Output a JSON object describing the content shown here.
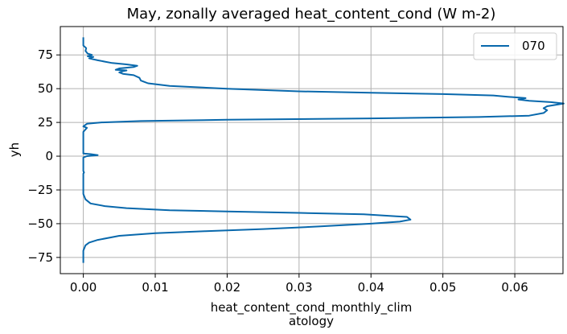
{
  "chart_data": {
    "type": "line",
    "title": "May, zonally averaged heat_content_cond (W m-2)",
    "xlabel_lines": [
      "heat_content_cond_monthly_clim",
      "atology"
    ],
    "ylabel": "yh",
    "xlim": [
      -0.0032,
      0.0667
    ],
    "ylim": [
      -87,
      96
    ],
    "xticks": [
      0.0,
      0.01,
      0.02,
      0.03,
      0.04,
      0.05,
      0.06
    ],
    "xtick_labels": [
      "0.00",
      "0.01",
      "0.02",
      "0.03",
      "0.04",
      "0.05",
      "0.06"
    ],
    "yticks": [
      -75,
      -50,
      -25,
      0,
      25,
      50,
      75
    ],
    "ytick_labels": [
      "−75",
      "−50",
      "−25",
      "0",
      "25",
      "50",
      "75"
    ],
    "grid": true,
    "legend_position": "upper right",
    "series": [
      {
        "name": "070",
        "color": "#0868ac",
        "points": [
          [
            0.0,
            -79
          ],
          [
            0.0,
            -70
          ],
          [
            0.0003,
            -66
          ],
          [
            0.0008,
            -64
          ],
          [
            0.002,
            -62
          ],
          [
            0.005,
            -59
          ],
          [
            0.01,
            -57
          ],
          [
            0.017,
            -55.5
          ],
          [
            0.025,
            -54
          ],
          [
            0.033,
            -52
          ],
          [
            0.04,
            -50
          ],
          [
            0.044,
            -48.5
          ],
          [
            0.0455,
            -47
          ],
          [
            0.045,
            -45
          ],
          [
            0.0435,
            -44.5
          ],
          [
            0.039,
            -43
          ],
          [
            0.03,
            -42
          ],
          [
            0.02,
            -41
          ],
          [
            0.012,
            -40
          ],
          [
            0.006,
            -38.5
          ],
          [
            0.003,
            -37
          ],
          [
            0.001,
            -35
          ],
          [
            0.0003,
            -32
          ],
          [
            0.0,
            -28
          ],
          [
            0.0,
            -25
          ],
          [
            0.0,
            -20
          ],
          [
            0.0,
            -13
          ],
          [
            0.0001,
            -12
          ],
          [
            0.0,
            -11
          ],
          [
            0.0,
            -5
          ],
          [
            0.0,
            -1
          ],
          [
            0.0005,
            0
          ],
          [
            0.002,
            0.8
          ],
          [
            0.001,
            1.5
          ],
          [
            0.0,
            2
          ],
          [
            0.0,
            18
          ],
          [
            0.0005,
            21
          ],
          [
            0.0,
            22
          ],
          [
            0.0005,
            24
          ],
          [
            0.0025,
            25
          ],
          [
            0.008,
            26
          ],
          [
            0.02,
            27
          ],
          [
            0.04,
            28
          ],
          [
            0.055,
            29
          ],
          [
            0.062,
            30
          ],
          [
            0.064,
            32
          ],
          [
            0.0645,
            34
          ],
          [
            0.064,
            35.5
          ],
          [
            0.0645,
            37
          ],
          [
            0.0668,
            39
          ],
          [
            0.065,
            40
          ],
          [
            0.062,
            41
          ],
          [
            0.0605,
            42
          ],
          [
            0.0615,
            43
          ],
          [
            0.059,
            44
          ],
          [
            0.057,
            45
          ],
          [
            0.05,
            46
          ],
          [
            0.04,
            47
          ],
          [
            0.03,
            48
          ],
          [
            0.02,
            50
          ],
          [
            0.012,
            52
          ],
          [
            0.009,
            54
          ],
          [
            0.0085,
            55
          ],
          [
            0.008,
            56
          ],
          [
            0.0078,
            58
          ],
          [
            0.007,
            60
          ],
          [
            0.0055,
            61
          ],
          [
            0.005,
            62
          ],
          [
            0.0055,
            63
          ],
          [
            0.006,
            63.5
          ],
          [
            0.0045,
            64
          ],
          [
            0.005,
            65
          ],
          [
            0.007,
            66
          ],
          [
            0.0075,
            67
          ],
          [
            0.006,
            68
          ],
          [
            0.004,
            69
          ],
          [
            0.003,
            70
          ],
          [
            0.002,
            71
          ],
          [
            0.0012,
            72
          ],
          [
            0.0008,
            72.5
          ],
          [
            0.0014,
            73.5
          ],
          [
            0.0006,
            74
          ],
          [
            0.0012,
            75
          ],
          [
            0.0006,
            76
          ],
          [
            0.0003,
            78
          ],
          [
            0.0004,
            80
          ],
          [
            0.0,
            82
          ],
          [
            0.0,
            88
          ]
        ]
      }
    ]
  }
}
